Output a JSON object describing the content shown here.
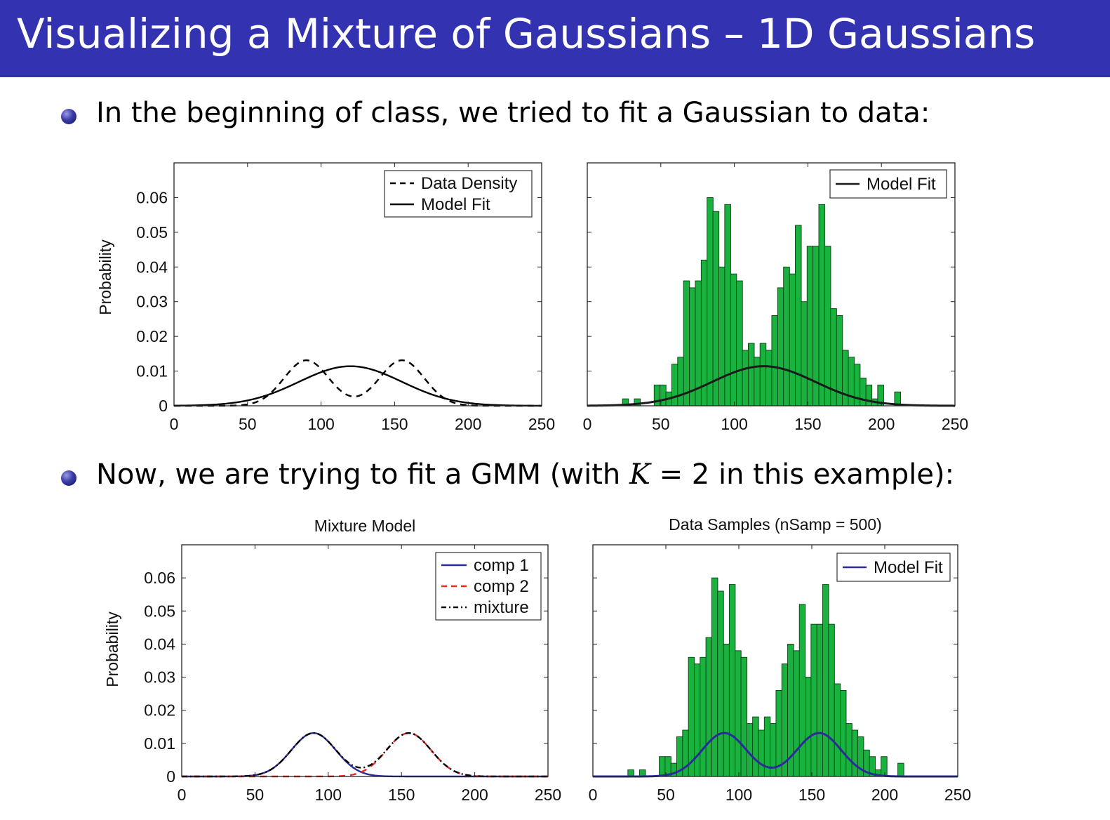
{
  "slide": {
    "title": "Visualizing a Mixture of Gaussians – 1D Gaussians",
    "bullet1": "In the beginning of class, we tried to fit a Gaussian to data:",
    "bullet2_prefix": "Now, we are trying to fit a GMM (with ",
    "bullet2_var": "K",
    "bullet2_suffix": " = 2 in this example):"
  },
  "chart_data": [
    {
      "type": "line",
      "title": "",
      "xlabel": "",
      "ylabel": "Probability",
      "xlim": [
        0,
        250
      ],
      "ylim": [
        0,
        0.07
      ],
      "xticks": [
        "0",
        "50",
        "100",
        "150",
        "200",
        "250"
      ],
      "yticks": [
        "0",
        "0.01",
        "0.02",
        "0.03",
        "0.04",
        "0.05",
        "0.06"
      ],
      "legend_position": "top-right",
      "series": [
        {
          "name": "Data Density",
          "style": "dashed",
          "color": "#000000",
          "curve": "mixture",
          "components": [
            {
              "weight": 0.5,
              "mean": 90,
              "sd": 15.2
            },
            {
              "weight": 0.5,
              "mean": 155,
              "sd": 15.2
            }
          ]
        },
        {
          "name": "Model Fit",
          "style": "solid",
          "color": "#000000",
          "curve": "gaussian",
          "mean": 120,
          "sd": 35
        }
      ]
    },
    {
      "type": "bar",
      "title": "",
      "xlabel": "",
      "ylabel": "",
      "xlim": [
        0,
        250
      ],
      "ylim": [
        0,
        0.07
      ],
      "xticks": [
        "0",
        "50",
        "100",
        "150",
        "200",
        "250"
      ],
      "legend_position": "top-right",
      "bar_color": "#19b23f",
      "bin_width": 4.1,
      "bins": [
        {
          "x": 26,
          "y": 0.002
        },
        {
          "x": 34,
          "y": 0.002
        },
        {
          "x": 47.5,
          "y": 0.006
        },
        {
          "x": 51.5,
          "y": 0.006
        },
        {
          "x": 55.5,
          "y": 0.004
        },
        {
          "x": 59.5,
          "y": 0.012
        },
        {
          "x": 63.5,
          "y": 0.014
        },
        {
          "x": 67.5,
          "y": 0.036
        },
        {
          "x": 71.5,
          "y": 0.034
        },
        {
          "x": 75.5,
          "y": 0.036
        },
        {
          "x": 79.5,
          "y": 0.042
        },
        {
          "x": 83.5,
          "y": 0.06
        },
        {
          "x": 87.5,
          "y": 0.056
        },
        {
          "x": 91.5,
          "y": 0.04
        },
        {
          "x": 95.5,
          "y": 0.058
        },
        {
          "x": 99.5,
          "y": 0.038
        },
        {
          "x": 103.5,
          "y": 0.036
        },
        {
          "x": 107.5,
          "y": 0.016
        },
        {
          "x": 111.5,
          "y": 0.018
        },
        {
          "x": 115.5,
          "y": 0.014
        },
        {
          "x": 119.5,
          "y": 0.018
        },
        {
          "x": 123.5,
          "y": 0.016
        },
        {
          "x": 127.5,
          "y": 0.026
        },
        {
          "x": 131.5,
          "y": 0.034
        },
        {
          "x": 135.5,
          "y": 0.04
        },
        {
          "x": 139.5,
          "y": 0.038
        },
        {
          "x": 143.5,
          "y": 0.052
        },
        {
          "x": 147.5,
          "y": 0.03
        },
        {
          "x": 151.5,
          "y": 0.046
        },
        {
          "x": 155.5,
          "y": 0.046
        },
        {
          "x": 159.5,
          "y": 0.058
        },
        {
          "x": 163.5,
          "y": 0.046
        },
        {
          "x": 167.5,
          "y": 0.028
        },
        {
          "x": 171.5,
          "y": 0.026
        },
        {
          "x": 175.5,
          "y": 0.016
        },
        {
          "x": 179.5,
          "y": 0.014
        },
        {
          "x": 183.5,
          "y": 0.012
        },
        {
          "x": 187.5,
          "y": 0.008
        },
        {
          "x": 191.5,
          "y": 0.006
        },
        {
          "x": 195.5,
          "y": 0.002
        },
        {
          "x": 199.5,
          "y": 0.006
        },
        {
          "x": 211,
          "y": 0.004
        }
      ],
      "series": [
        {
          "name": "Model Fit",
          "style": "solid",
          "color": "#1a1a1a",
          "curve": "gaussian",
          "mean": 120,
          "sd": 35
        }
      ]
    },
    {
      "type": "line",
      "title": "Mixture Model",
      "xlabel": "",
      "ylabel": "Probability",
      "xlim": [
        0,
        250
      ],
      "ylim": [
        0,
        0.07
      ],
      "xticks": [
        "0",
        "50",
        "100",
        "150",
        "200",
        "250"
      ],
      "yticks": [
        "0",
        "0.01",
        "0.02",
        "0.03",
        "0.04",
        "0.05",
        "0.06"
      ],
      "legend_position": "top-right",
      "series": [
        {
          "name": "comp 1",
          "style": "solid",
          "color": "#2b2b9b",
          "curve": "weighted-gaussian",
          "weight": 0.5,
          "mean": 90,
          "sd": 15.2
        },
        {
          "name": "comp 2",
          "style": "dashed",
          "color": "#e8281e",
          "curve": "weighted-gaussian",
          "weight": 0.5,
          "mean": 155,
          "sd": 15.2
        },
        {
          "name": "mixture",
          "style": "dashdot",
          "color": "#000000",
          "curve": "mixture",
          "components": [
            {
              "weight": 0.5,
              "mean": 90,
              "sd": 15.2
            },
            {
              "weight": 0.5,
              "mean": 155,
              "sd": 15.2
            }
          ]
        }
      ]
    },
    {
      "type": "bar",
      "title": "Data Samples  (nSamp = 500)",
      "xlabel": "",
      "ylabel": "",
      "xlim": [
        0,
        250
      ],
      "ylim": [
        0,
        0.07
      ],
      "xticks": [
        "0",
        "50",
        "100",
        "150",
        "200",
        "250"
      ],
      "legend_position": "top-right",
      "bar_color": "#19b23f",
      "bin_width": 4.1,
      "bins": [
        {
          "x": 26,
          "y": 0.002
        },
        {
          "x": 34,
          "y": 0.002
        },
        {
          "x": 47.5,
          "y": 0.006
        },
        {
          "x": 51.5,
          "y": 0.006
        },
        {
          "x": 55.5,
          "y": 0.004
        },
        {
          "x": 59.5,
          "y": 0.012
        },
        {
          "x": 63.5,
          "y": 0.014
        },
        {
          "x": 67.5,
          "y": 0.036
        },
        {
          "x": 71.5,
          "y": 0.034
        },
        {
          "x": 75.5,
          "y": 0.036
        },
        {
          "x": 79.5,
          "y": 0.042
        },
        {
          "x": 83.5,
          "y": 0.06
        },
        {
          "x": 87.5,
          "y": 0.056
        },
        {
          "x": 91.5,
          "y": 0.04
        },
        {
          "x": 95.5,
          "y": 0.058
        },
        {
          "x": 99.5,
          "y": 0.038
        },
        {
          "x": 103.5,
          "y": 0.036
        },
        {
          "x": 107.5,
          "y": 0.016
        },
        {
          "x": 111.5,
          "y": 0.018
        },
        {
          "x": 115.5,
          "y": 0.014
        },
        {
          "x": 119.5,
          "y": 0.018
        },
        {
          "x": 123.5,
          "y": 0.016
        },
        {
          "x": 127.5,
          "y": 0.026
        },
        {
          "x": 131.5,
          "y": 0.034
        },
        {
          "x": 135.5,
          "y": 0.04
        },
        {
          "x": 139.5,
          "y": 0.038
        },
        {
          "x": 143.5,
          "y": 0.052
        },
        {
          "x": 147.5,
          "y": 0.03
        },
        {
          "x": 151.5,
          "y": 0.046
        },
        {
          "x": 155.5,
          "y": 0.046
        },
        {
          "x": 159.5,
          "y": 0.058
        },
        {
          "x": 163.5,
          "y": 0.046
        },
        {
          "x": 167.5,
          "y": 0.028
        },
        {
          "x": 171.5,
          "y": 0.026
        },
        {
          "x": 175.5,
          "y": 0.016
        },
        {
          "x": 179.5,
          "y": 0.014
        },
        {
          "x": 183.5,
          "y": 0.012
        },
        {
          "x": 187.5,
          "y": 0.008
        },
        {
          "x": 191.5,
          "y": 0.006
        },
        {
          "x": 195.5,
          "y": 0.002
        },
        {
          "x": 199.5,
          "y": 0.006
        },
        {
          "x": 211,
          "y": 0.004
        }
      ],
      "series": [
        {
          "name": "Model Fit",
          "style": "solid",
          "color": "#2b2b9b",
          "curve": "mixture",
          "components": [
            {
              "weight": 0.5,
              "mean": 90,
              "sd": 15.2
            },
            {
              "weight": 0.5,
              "mean": 155,
              "sd": 15.2
            }
          ]
        }
      ]
    }
  ]
}
